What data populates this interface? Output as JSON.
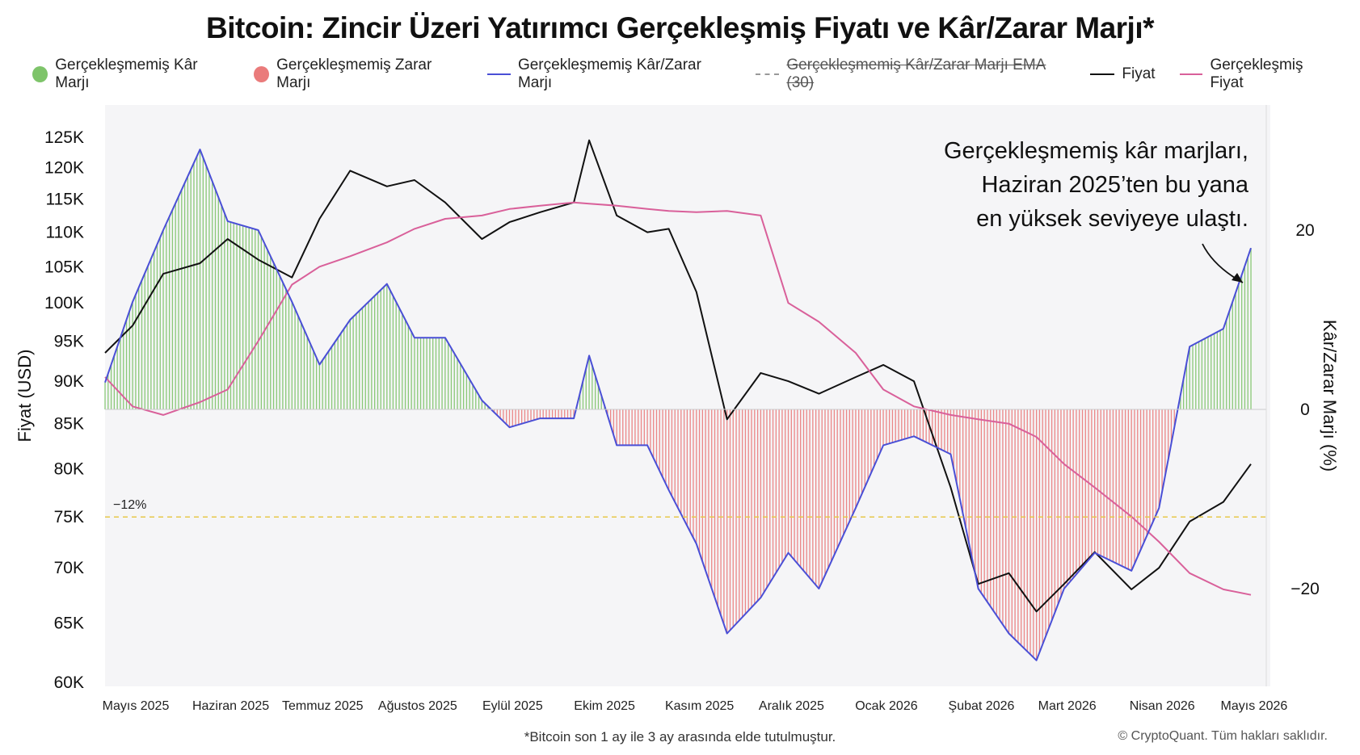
{
  "title": "Bitcoin: Zincir Üzeri Yatırımcı Gerçekleşmiş Fiyatı ve Kâr/Zarar Marjı*",
  "legend": [
    {
      "label": "Gerçekleşmemiş Kâr Marjı",
      "kind": "dot",
      "color": "#7ec46a"
    },
    {
      "label": "Gerçekleşmemiş Zarar Marjı",
      "kind": "dot",
      "color": "#ea7b7b"
    },
    {
      "label": "Gerçekleşmemiş Kâr/Zarar Marjı",
      "kind": "line",
      "color": "#4a4fd6"
    },
    {
      "label": "Gerçekleşmemiş Kâr/Zarar Marjı EMA (30)",
      "kind": "dashed",
      "color": "#999999"
    },
    {
      "label": "Fiyat",
      "kind": "line",
      "color": "#111111"
    },
    {
      "label": "Gerçekleşmiş Fiyat",
      "kind": "line",
      "color": "#d9609a"
    }
  ],
  "footnote": "*Bitcoin son 1 ay ile 3 ay arasında elde tutulmuştur.",
  "copyright": "© CryptoQuant. Tüm hakları saklıdır.",
  "chart_data": {
    "type": "line",
    "ylabel": "Fiyat (USD)",
    "y2label": "Kâr/Zarar Marjı (%)",
    "y_ticks": [
      "125K",
      "120K",
      "115K",
      "110K",
      "105K",
      "100K",
      "95K",
      "90K",
      "85K",
      "80K",
      "75K",
      "70K",
      "65K",
      "60K"
    ],
    "y2_ticks": [
      "20",
      "0",
      "−20"
    ],
    "x_ticks": [
      "Mayıs 2025",
      "Haziran 2025",
      "Temmuz 2025",
      "Ağustos 2025",
      "Eylül 2025",
      "Ekim 2025",
      "Kasım 2025",
      "Aralık 2025",
      "Ocak 2026",
      "Şubat 2026",
      "Mart 2026",
      "Nisan 2026",
      "Mayıs 2026"
    ],
    "ylim": [
      60000,
      125000
    ],
    "y2lim": [
      -20,
      20
    ],
    "reference_line": {
      "value": -12,
      "label": "−12%",
      "color": "#e6c84a"
    },
    "annotation": [
      "Gerçekleşmemiş kâr marjları,",
      "Haziran 2025’ten bu yana",
      "en yüksek seviyeye ulaştı."
    ],
    "x_dates": [
      "2025-05-01",
      "2025-05-10",
      "2025-05-20",
      "2025-06-01",
      "2025-06-10",
      "2025-06-20",
      "2025-07-01",
      "2025-07-10",
      "2025-07-20",
      "2025-08-01",
      "2025-08-10",
      "2025-08-20",
      "2025-09-01",
      "2025-09-10",
      "2025-09-20",
      "2025-10-01",
      "2025-10-06",
      "2025-10-15",
      "2025-10-25",
      "2025-11-01",
      "2025-11-10",
      "2025-11-20",
      "2025-12-01",
      "2025-12-10",
      "2025-12-20",
      "2026-01-01",
      "2026-01-10",
      "2026-01-20",
      "2026-02-01",
      "2026-02-10",
      "2026-02-20",
      "2026-03-01",
      "2026-03-10",
      "2026-03-20",
      "2026-04-01",
      "2026-04-10",
      "2026-04-20",
      "2026-05-01",
      "2026-05-10"
    ],
    "series": [
      {
        "name": "Fiyat",
        "color": "#111111",
        "values": [
          93500,
          97000,
          104000,
          105500,
          109000,
          106000,
          103500,
          112000,
          119500,
          117000,
          118000,
          114500,
          109000,
          111500,
          113000,
          114500,
          124500,
          112500,
          110000,
          110500,
          101500,
          85500,
          91000,
          90000,
          88500,
          90500,
          92000,
          90000,
          78000,
          68500,
          69500,
          66000,
          68500,
          71500,
          68000,
          70000,
          74500,
          76500,
          80500
        ]
      },
      {
        "name": "Gerçekleşmiş Fiyat",
        "color": "#d9609a",
        "values": [
          90500,
          87000,
          86000,
          87500,
          89000,
          95000,
          102500,
          105000,
          106500,
          108500,
          110500,
          112000,
          112500,
          113500,
          114000,
          114500,
          114300,
          114000,
          113500,
          113200,
          113000,
          113200,
          112500,
          100000,
          97500,
          93500,
          89000,
          87000,
          86000,
          85500,
          85000,
          83500,
          80500,
          78000,
          75000,
          72500,
          69500,
          68000,
          67500
        ]
      },
      {
        "name": "Gerçekleşmemiş Kâr/Zarar Marjı",
        "color": "#4a4fd6",
        "values": [
          3,
          12,
          20,
          29,
          21,
          20,
          12,
          5,
          10,
          14,
          8,
          8,
          1,
          -2,
          -1,
          -1,
          6,
          -4,
          -4,
          -9,
          -15,
          -25,
          -21,
          -16,
          -20,
          -11,
          -4,
          -3,
          -5,
          -20,
          -25,
          -28,
          -20,
          -16,
          -18,
          -11,
          7,
          9,
          18
        ]
      }
    ]
  }
}
